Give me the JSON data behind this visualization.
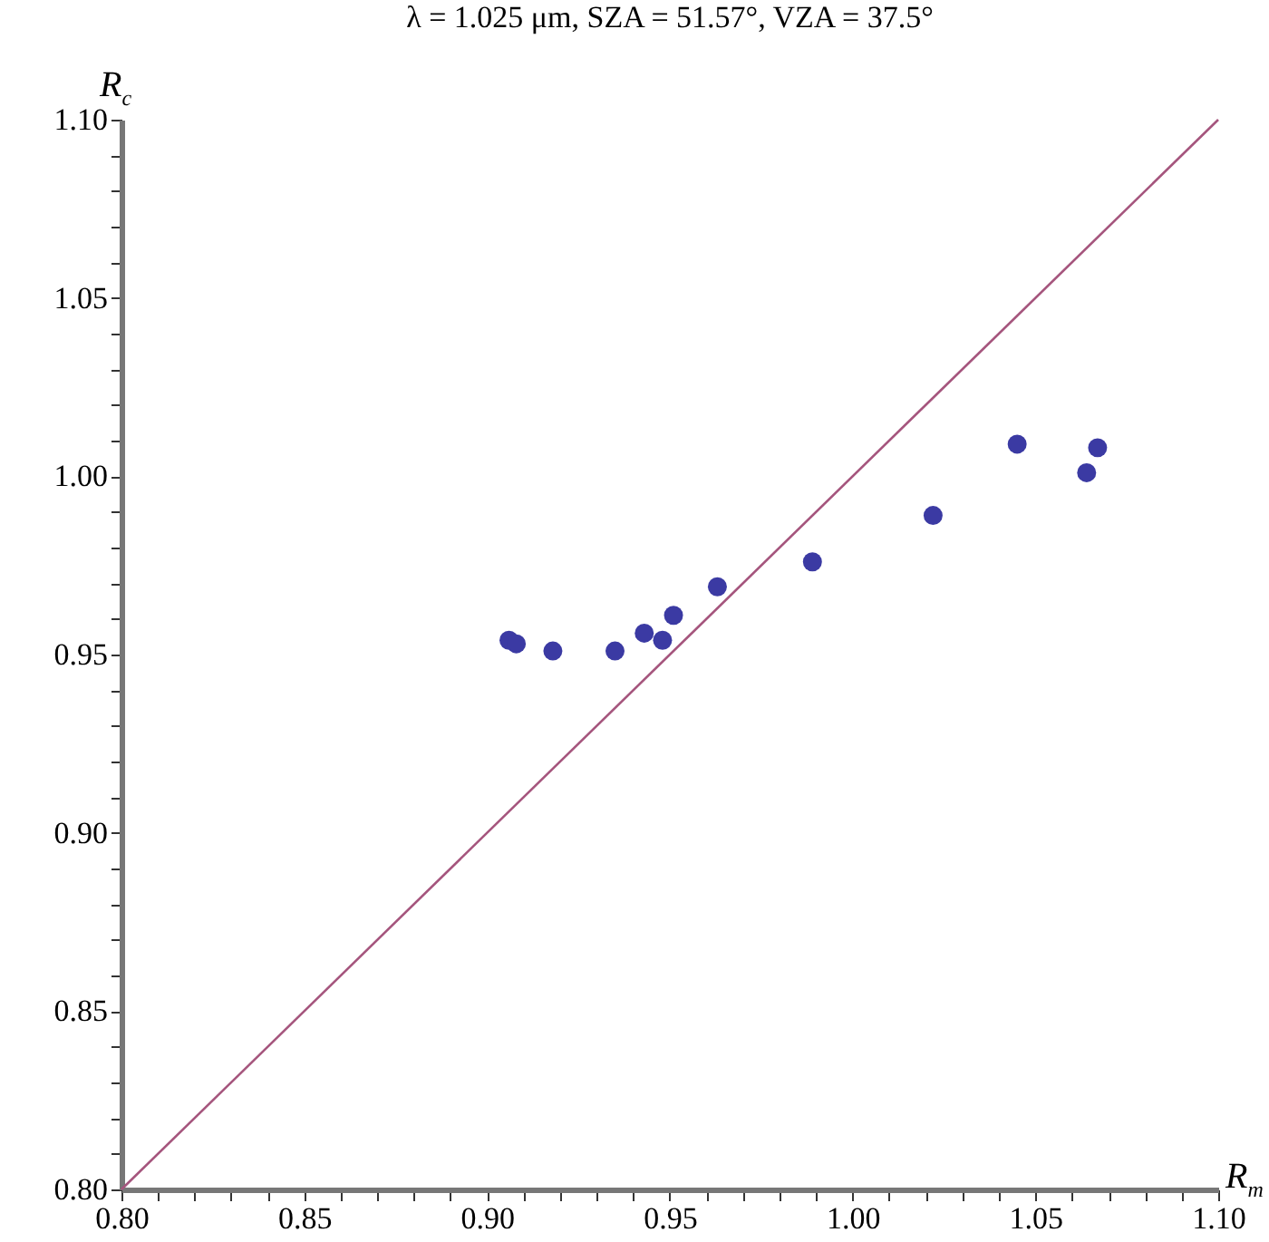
{
  "chart_data": {
    "type": "scatter",
    "title": "λ = 1.025 μm, SZA = 51.57°, VZA = 37.5°",
    "xlabel": "R$_{m}$",
    "ylabel": "R$_{c}$",
    "grid": false,
    "xlim": [
      0.8,
      1.1
    ],
    "ylim": [
      0.8,
      1.1
    ],
    "xticks": [
      {
        "value": 0.8,
        "label": "0.80"
      },
      {
        "value": 0.81,
        "label": null
      },
      {
        "value": 0.82,
        "label": null
      },
      {
        "value": 0.83,
        "label": null
      },
      {
        "value": 0.84,
        "label": null
      },
      {
        "value": 0.85,
        "label": "0.85"
      },
      {
        "value": 0.86,
        "label": null
      },
      {
        "value": 0.87,
        "label": null
      },
      {
        "value": 0.88,
        "label": null
      },
      {
        "value": 0.89,
        "label": null
      },
      {
        "value": 0.9,
        "label": "0.90"
      },
      {
        "value": 0.91,
        "label": null
      },
      {
        "value": 0.92,
        "label": null
      },
      {
        "value": 0.93,
        "label": null
      },
      {
        "value": 0.94,
        "label": null
      },
      {
        "value": 0.95,
        "label": "0.95"
      },
      {
        "value": 0.96,
        "label": null
      },
      {
        "value": 0.97,
        "label": null
      },
      {
        "value": 0.98,
        "label": null
      },
      {
        "value": 0.99,
        "label": null
      },
      {
        "value": 1.0,
        "label": "1.00"
      },
      {
        "value": 1.01,
        "label": null
      },
      {
        "value": 1.02,
        "label": null
      },
      {
        "value": 1.03,
        "label": null
      },
      {
        "value": 1.04,
        "label": null
      },
      {
        "value": 1.05,
        "label": "1.05"
      },
      {
        "value": 1.06,
        "label": null
      },
      {
        "value": 1.07,
        "label": null
      },
      {
        "value": 1.08,
        "label": null
      },
      {
        "value": 1.09,
        "label": null
      },
      {
        "value": 1.1,
        "label": "1.10"
      }
    ],
    "yticks": [
      {
        "value": 0.8,
        "label": "0.80"
      },
      {
        "value": 0.81,
        "label": null
      },
      {
        "value": 0.82,
        "label": null
      },
      {
        "value": 0.83,
        "label": null
      },
      {
        "value": 0.84,
        "label": null
      },
      {
        "value": 0.85,
        "label": "0.85"
      },
      {
        "value": 0.86,
        "label": null
      },
      {
        "value": 0.87,
        "label": null
      },
      {
        "value": 0.88,
        "label": null
      },
      {
        "value": 0.89,
        "label": null
      },
      {
        "value": 0.9,
        "label": "0.90"
      },
      {
        "value": 0.91,
        "label": null
      },
      {
        "value": 0.92,
        "label": null
      },
      {
        "value": 0.93,
        "label": null
      },
      {
        "value": 0.94,
        "label": null
      },
      {
        "value": 0.95,
        "label": "0.95"
      },
      {
        "value": 0.96,
        "label": null
      },
      {
        "value": 0.97,
        "label": null
      },
      {
        "value": 0.98,
        "label": null
      },
      {
        "value": 0.99,
        "label": null
      },
      {
        "value": 1.0,
        "label": "1.00"
      },
      {
        "value": 1.01,
        "label": null
      },
      {
        "value": 1.02,
        "label": null
      },
      {
        "value": 1.03,
        "label": null
      },
      {
        "value": 1.04,
        "label": null
      },
      {
        "value": 1.05,
        "label": "1.05"
      },
      {
        "value": 1.06,
        "label": null
      },
      {
        "value": 1.07,
        "label": null
      },
      {
        "value": 1.08,
        "label": null
      },
      {
        "value": 1.09,
        "label": null
      },
      {
        "value": 1.1,
        "label": "1.10"
      }
    ],
    "series": [
      {
        "type": "scatter",
        "marker": "circle",
        "color": "#3b3aa3",
        "x": [
          0.906,
          0.908,
          0.918,
          0.935,
          0.943,
          0.948,
          0.951,
          0.963,
          0.989,
          1.022,
          1.045,
          1.064,
          1.067
        ],
        "values": [
          0.954,
          0.953,
          0.951,
          0.951,
          0.956,
          0.954,
          0.961,
          0.969,
          0.976,
          0.989,
          1.009,
          1.001,
          1.008
        ]
      },
      {
        "type": "line",
        "color": "#a5557d",
        "x": [
          0.8,
          1.1
        ],
        "values": [
          0.8,
          1.1
        ]
      }
    ]
  }
}
